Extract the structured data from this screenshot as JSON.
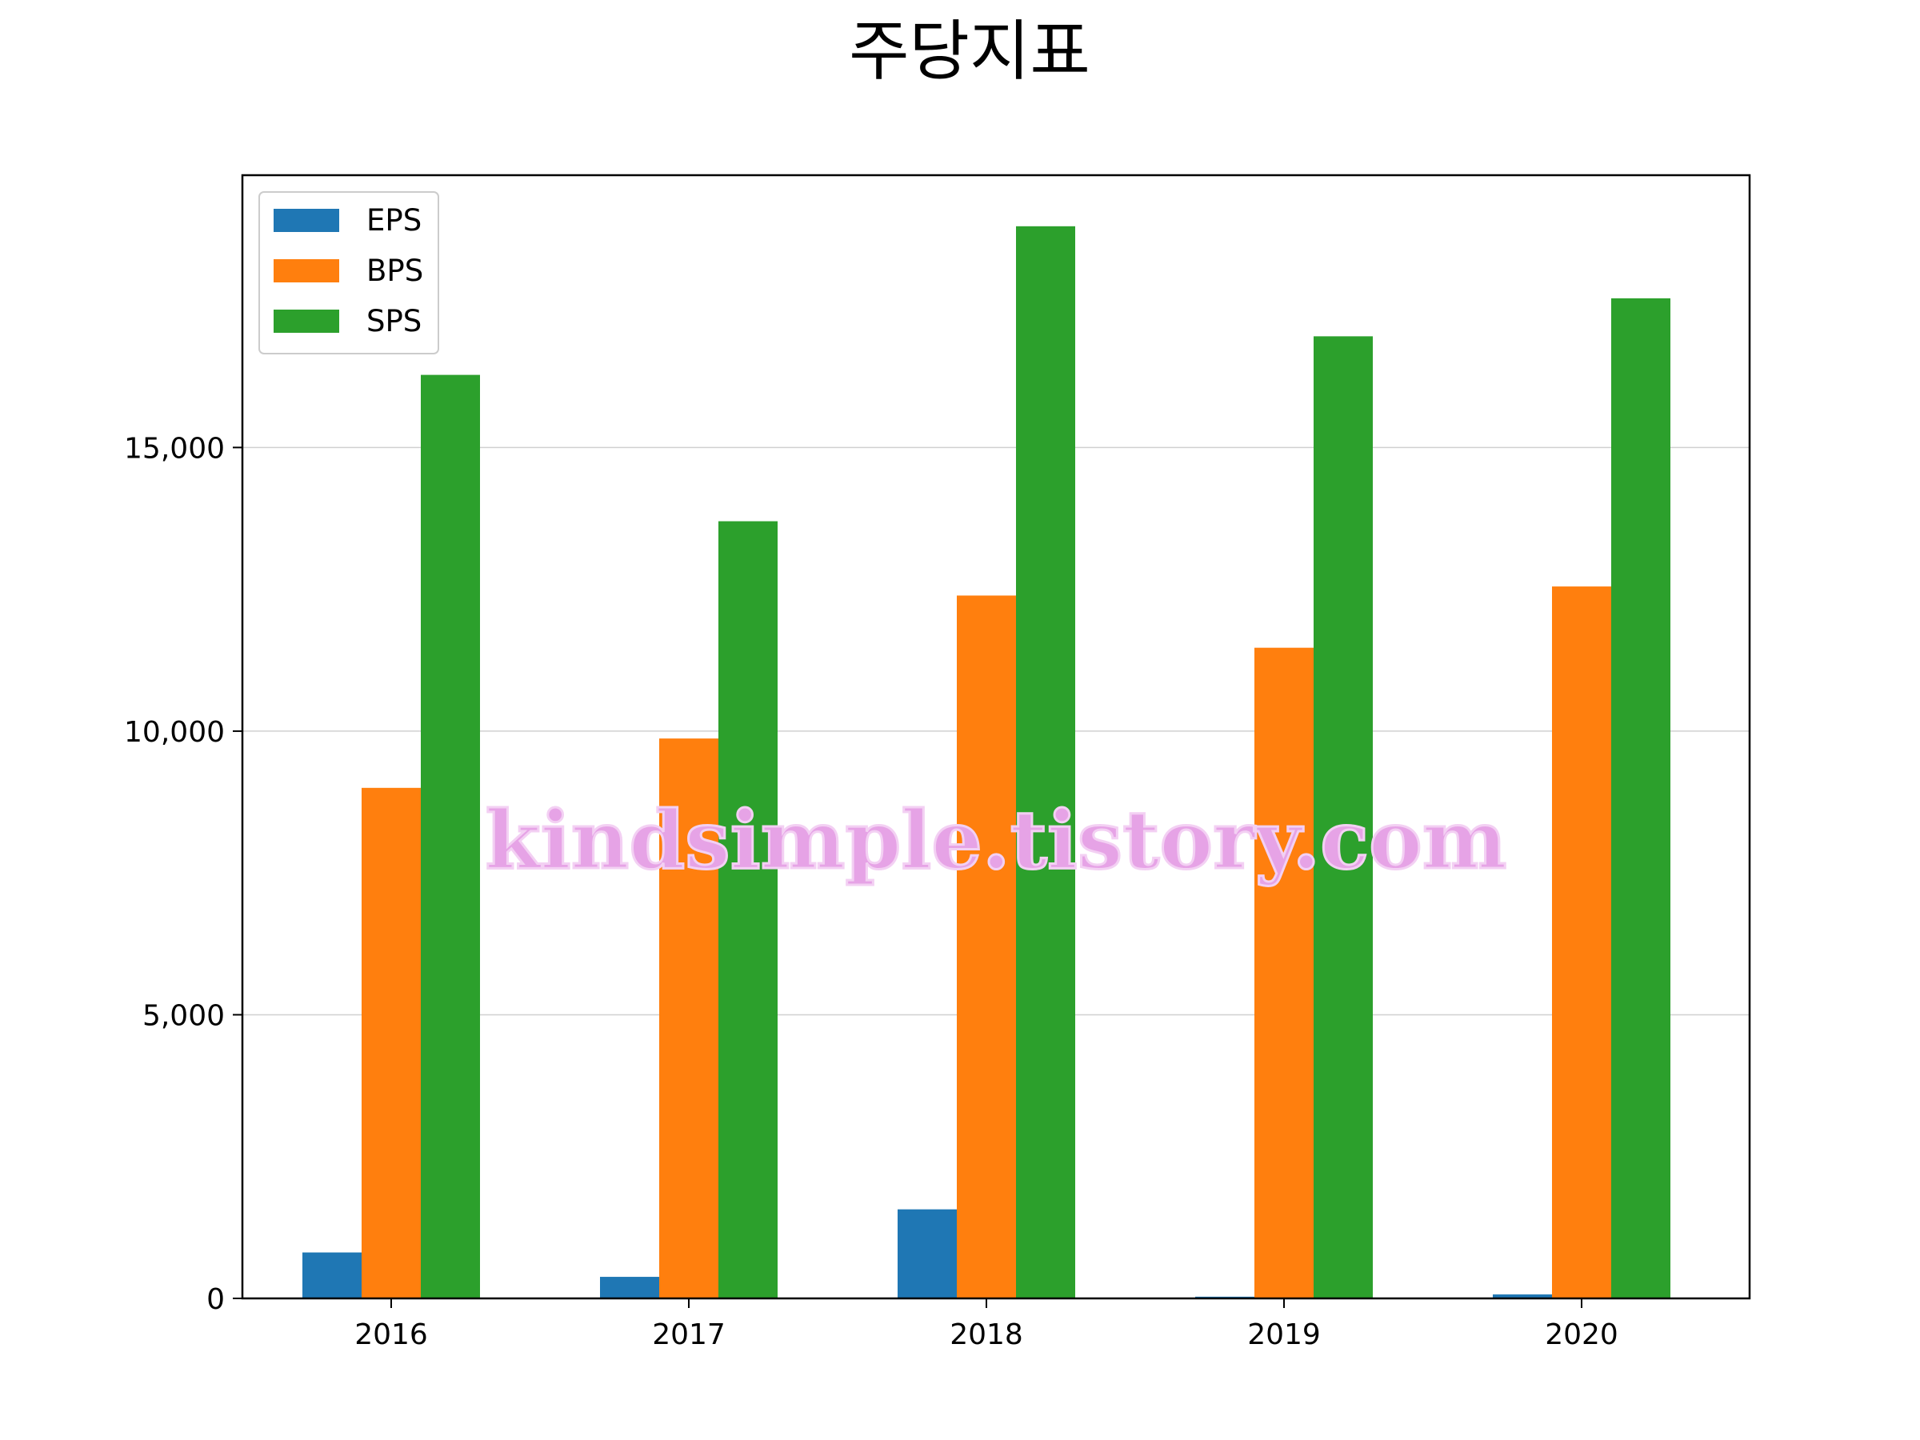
{
  "chart_data": {
    "type": "bar",
    "title": "주당지표",
    "xlabel": "",
    "ylabel": "",
    "categories": [
      "2016",
      "2017",
      "2018",
      "2019",
      "2020"
    ],
    "series": [
      {
        "name": "EPS",
        "color": "#1f77b4",
        "values": [
          810,
          380,
          1570,
          30,
          70
        ]
      },
      {
        "name": "BPS",
        "color": "#ff7f0e",
        "values": [
          9000,
          9870,
          12390,
          11470,
          12550
        ]
      },
      {
        "name": "SPS",
        "color": "#2ca02c",
        "values": [
          16280,
          13700,
          18900,
          16960,
          17630
        ]
      }
    ],
    "ylim": [
      0,
      19800
    ],
    "yticks": [
      0,
      5000,
      10000,
      15000
    ],
    "ytick_labels": [
      "0",
      "5,000",
      "10,000",
      "15,000"
    ],
    "grid": "y",
    "legend_position": "top-left",
    "watermark": "kindsimple.tistory.com"
  }
}
